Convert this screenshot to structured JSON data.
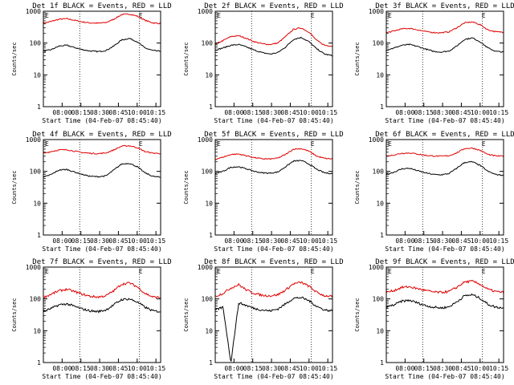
{
  "colors": {
    "events": "#000000",
    "lld": "#e00000",
    "axis": "#000000",
    "background": "#ffffff"
  },
  "common": {
    "ylabel": "Counts/sec",
    "xlabel": "Start Time (04-Feb-07 08:45:40)",
    "xtick_labels": [
      "08:00",
      "08:15",
      "08:30",
      "08:45",
      "10:00",
      "10:15"
    ],
    "y_tick_labels": [
      "1",
      "10",
      "100",
      "1000"
    ],
    "ylim": [
      1,
      1000
    ],
    "ylog": true,
    "corner_marks": [
      "E",
      "E"
    ]
  },
  "chart_data": [
    {
      "type": "line",
      "title": "Det 1f BLACK = Events, RED = LLD",
      "series": [
        {
          "name": "Events",
          "color": "#000000",
          "values": [
            55,
            62,
            80,
            85,
            72,
            62,
            56,
            54,
            58,
            80,
            125,
            140,
            110,
            70,
            58,
            55
          ]
        },
        {
          "name": "LLD",
          "color": "#e00000",
          "values": [
            420,
            480,
            560,
            580,
            520,
            460,
            430,
            420,
            440,
            560,
            780,
            820,
            700,
            520,
            430,
            410
          ]
        }
      ]
    },
    {
      "type": "line",
      "title": "Det 2f BLACK = Events, RED = LLD",
      "series": [
        {
          "name": "Events",
          "color": "#000000",
          "values": [
            60,
            70,
            85,
            90,
            75,
            60,
            50,
            45,
            50,
            75,
            130,
            150,
            110,
            65,
            45,
            40
          ]
        },
        {
          "name": "LLD",
          "color": "#e00000",
          "values": [
            90,
            120,
            160,
            170,
            140,
            110,
            95,
            90,
            100,
            160,
            270,
            300,
            220,
            120,
            85,
            80
          ]
        }
      ]
    },
    {
      "type": "line",
      "title": "Det 3f BLACK = Events, RED = LLD",
      "series": [
        {
          "name": "Events",
          "color": "#000000",
          "values": [
            60,
            70,
            85,
            90,
            78,
            65,
            55,
            52,
            56,
            80,
            130,
            145,
            110,
            70,
            55,
            52
          ]
        },
        {
          "name": "LLD",
          "color": "#e00000",
          "values": [
            210,
            240,
            280,
            290,
            260,
            230,
            215,
            210,
            225,
            300,
            430,
            460,
            380,
            260,
            225,
            220
          ]
        }
      ]
    },
    {
      "type": "line",
      "title": "Det 4f BLACK = Events, RED = LLD",
      "series": [
        {
          "name": "Events",
          "color": "#000000",
          "values": [
            65,
            80,
            110,
            115,
            95,
            80,
            70,
            68,
            72,
            110,
            170,
            180,
            140,
            90,
            70,
            65
          ]
        },
        {
          "name": "LLD",
          "color": "#e00000",
          "values": [
            370,
            420,
            470,
            480,
            430,
            390,
            370,
            360,
            380,
            470,
            620,
            640,
            560,
            420,
            375,
            365
          ]
        }
      ]
    },
    {
      "type": "line",
      "title": "Det 5f BLACK = Events, RED = LLD",
      "series": [
        {
          "name": "Events",
          "color": "#000000",
          "values": [
            85,
            100,
            135,
            140,
            120,
            100,
            90,
            88,
            95,
            140,
            210,
            220,
            170,
            115,
            90,
            85
          ]
        },
        {
          "name": "LLD",
          "color": "#e00000",
          "values": [
            240,
            280,
            340,
            350,
            310,
            270,
            250,
            245,
            260,
            340,
            500,
            520,
            430,
            300,
            255,
            245
          ]
        }
      ]
    },
    {
      "type": "line",
      "title": "Det 6f BLACK = Events, RED = LLD",
      "series": [
        {
          "name": "Events",
          "color": "#000000",
          "values": [
            80,
            95,
            120,
            125,
            105,
            90,
            80,
            78,
            85,
            125,
            190,
            200,
            155,
            100,
            80,
            75
          ]
        },
        {
          "name": "LLD",
          "color": "#e00000",
          "values": [
            300,
            330,
            370,
            380,
            350,
            320,
            305,
            300,
            310,
            380,
            520,
            540,
            460,
            340,
            305,
            300
          ]
        }
      ]
    },
    {
      "type": "line",
      "title": "Det 7f BLACK = Events, RED = LLD",
      "series": [
        {
          "name": "Events",
          "color": "#000000",
          "values": [
            40,
            50,
            65,
            70,
            58,
            48,
            42,
            40,
            45,
            65,
            95,
            100,
            80,
            55,
            42,
            40
          ]
        },
        {
          "name": "LLD",
          "color": "#e00000",
          "values": [
            110,
            140,
            180,
            200,
            170,
            140,
            120,
            115,
            125,
            180,
            290,
            320,
            240,
            150,
            115,
            110
          ]
        }
      ]
    },
    {
      "type": "line",
      "title": "Det 8f BLACK = Events, RED = LLD",
      "series": [
        {
          "name": "Events",
          "color": "#000000",
          "values": [
            45,
            55,
            1,
            75,
            62,
            50,
            45,
            42,
            48,
            70,
            105,
            110,
            88,
            58,
            45,
            42
          ]
        },
        {
          "name": "LLD",
          "color": "#e00000",
          "values": [
            120,
            150,
            220,
            280,
            190,
            150,
            130,
            125,
            135,
            190,
            300,
            330,
            250,
            160,
            125,
            120
          ]
        }
      ]
    },
    {
      "type": "line",
      "title": "Det 9f BLACK = Events, RED = LLD",
      "series": [
        {
          "name": "Events",
          "color": "#000000",
          "values": [
            55,
            65,
            85,
            90,
            75,
            62,
            55,
            52,
            56,
            80,
            125,
            135,
            105,
            68,
            55,
            52
          ]
        },
        {
          "name": "LLD",
          "color": "#e00000",
          "values": [
            160,
            185,
            230,
            240,
            210,
            185,
            165,
            160,
            170,
            230,
            340,
            360,
            290,
            200,
            170,
            160
          ]
        }
      ]
    }
  ]
}
